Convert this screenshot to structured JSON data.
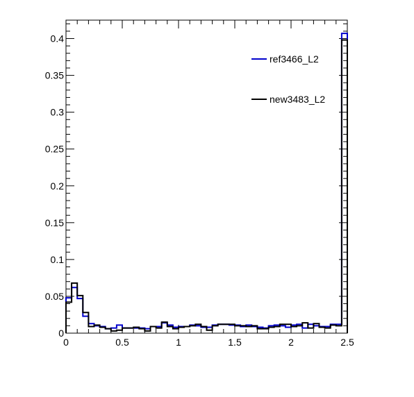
{
  "chart_data": {
    "type": "step",
    "x_edges_range": [
      0,
      2.5
    ],
    "bin_count": 50,
    "xlim": [
      0,
      2.5
    ],
    "ylim": [
      0,
      0.425
    ],
    "x_ticks": [
      0,
      0.5,
      1,
      1.5,
      2,
      2.5
    ],
    "x_tick_labels": [
      "0",
      "0.5",
      "1",
      "1.5",
      "2",
      "2.5"
    ],
    "y_ticks": [
      0,
      0.05,
      0.1,
      0.15,
      0.2,
      0.25,
      0.3,
      0.35,
      0.4
    ],
    "y_tick_labels": [
      "0",
      "0.05",
      "0.1",
      "0.15",
      "0.2",
      "0.25",
      "0.3",
      "0.35",
      "0.4"
    ],
    "grid": false,
    "legend_position": "top-right",
    "series": [
      {
        "name": "ref3466_L2",
        "color": "#0000cc",
        "values": [
          0.048,
          0.062,
          0.047,
          0.023,
          0.013,
          0.01,
          0.009,
          0.006,
          0.007,
          0.011,
          0.007,
          0.007,
          0.007,
          0.007,
          0.006,
          0.009,
          0.009,
          0.014,
          0.011,
          0.008,
          0.009,
          0.009,
          0.011,
          0.01,
          0.008,
          0.008,
          0.011,
          0.012,
          0.012,
          0.011,
          0.011,
          0.009,
          0.011,
          0.009,
          0.008,
          0.007,
          0.01,
          0.011,
          0.01,
          0.008,
          0.011,
          0.012,
          0.007,
          0.012,
          0.01,
          0.009,
          0.009,
          0.012,
          0.012,
          0.407
        ]
      },
      {
        "name": "new3483_L2",
        "color": "#000000",
        "values": [
          0.042,
          0.068,
          0.051,
          0.028,
          0.009,
          0.011,
          0.008,
          0.006,
          0.003,
          0.004,
          0.007,
          0.007,
          0.008,
          0.006,
          0.003,
          0.009,
          0.007,
          0.015,
          0.009,
          0.006,
          0.008,
          0.009,
          0.01,
          0.012,
          0.009,
          0.004,
          0.01,
          0.012,
          0.012,
          0.012,
          0.01,
          0.01,
          0.009,
          0.01,
          0.006,
          0.006,
          0.008,
          0.009,
          0.012,
          0.012,
          0.009,
          0.01,
          0.014,
          0.007,
          0.013,
          0.008,
          0.007,
          0.011,
          0.01,
          0.398
        ]
      }
    ]
  }
}
